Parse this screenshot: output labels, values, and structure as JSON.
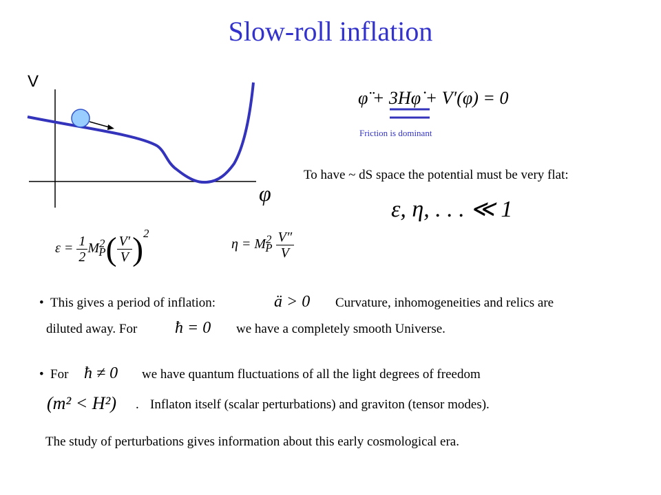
{
  "title": "Slow-roll inflation",
  "plot": {
    "y_label": "V",
    "x_label": "φ"
  },
  "equation": {
    "text": "φ̈ + 3Hφ̇ + V′(φ) = 0",
    "note": "Friction is dominant"
  },
  "flatness": {
    "text": "To have ~ dS space the potential must be very flat:",
    "condition": "ε, η, . . . ≪ 1"
  },
  "epsilon_formula": {
    "lhs": "ε =",
    "num": "1",
    "den": "2",
    "mass": "M",
    "mass_sub": "P",
    "mass_sup": "2",
    "inner_num": "V′",
    "inner_den": "V",
    "power": "2"
  },
  "eta_formula": {
    "lhs": "η =",
    "mass": "M",
    "mass_sub": "P",
    "mass_sup": "2",
    "num": "V″",
    "den": "V"
  },
  "bullets": [
    {
      "parts": [
        "This gives a period of inflation:",
        "ä > 0",
        "Curvature, inhomogeneities and relics are"
      ],
      "line2": [
        "diluted away.  For",
        "ħ = 0",
        "we have a completely smooth Universe."
      ]
    },
    {
      "parts": [
        "For",
        "ħ ≠ 0",
        "we have quantum fluctuations of all the light degrees of freedom"
      ],
      "line2": [
        "(m² < H²)",
        ".",
        "Inflaton itself (scalar perturbations) and graviton (tensor modes)."
      ]
    }
  ],
  "conclusion": "The study of perturbations gives information about this early cosmological era."
}
